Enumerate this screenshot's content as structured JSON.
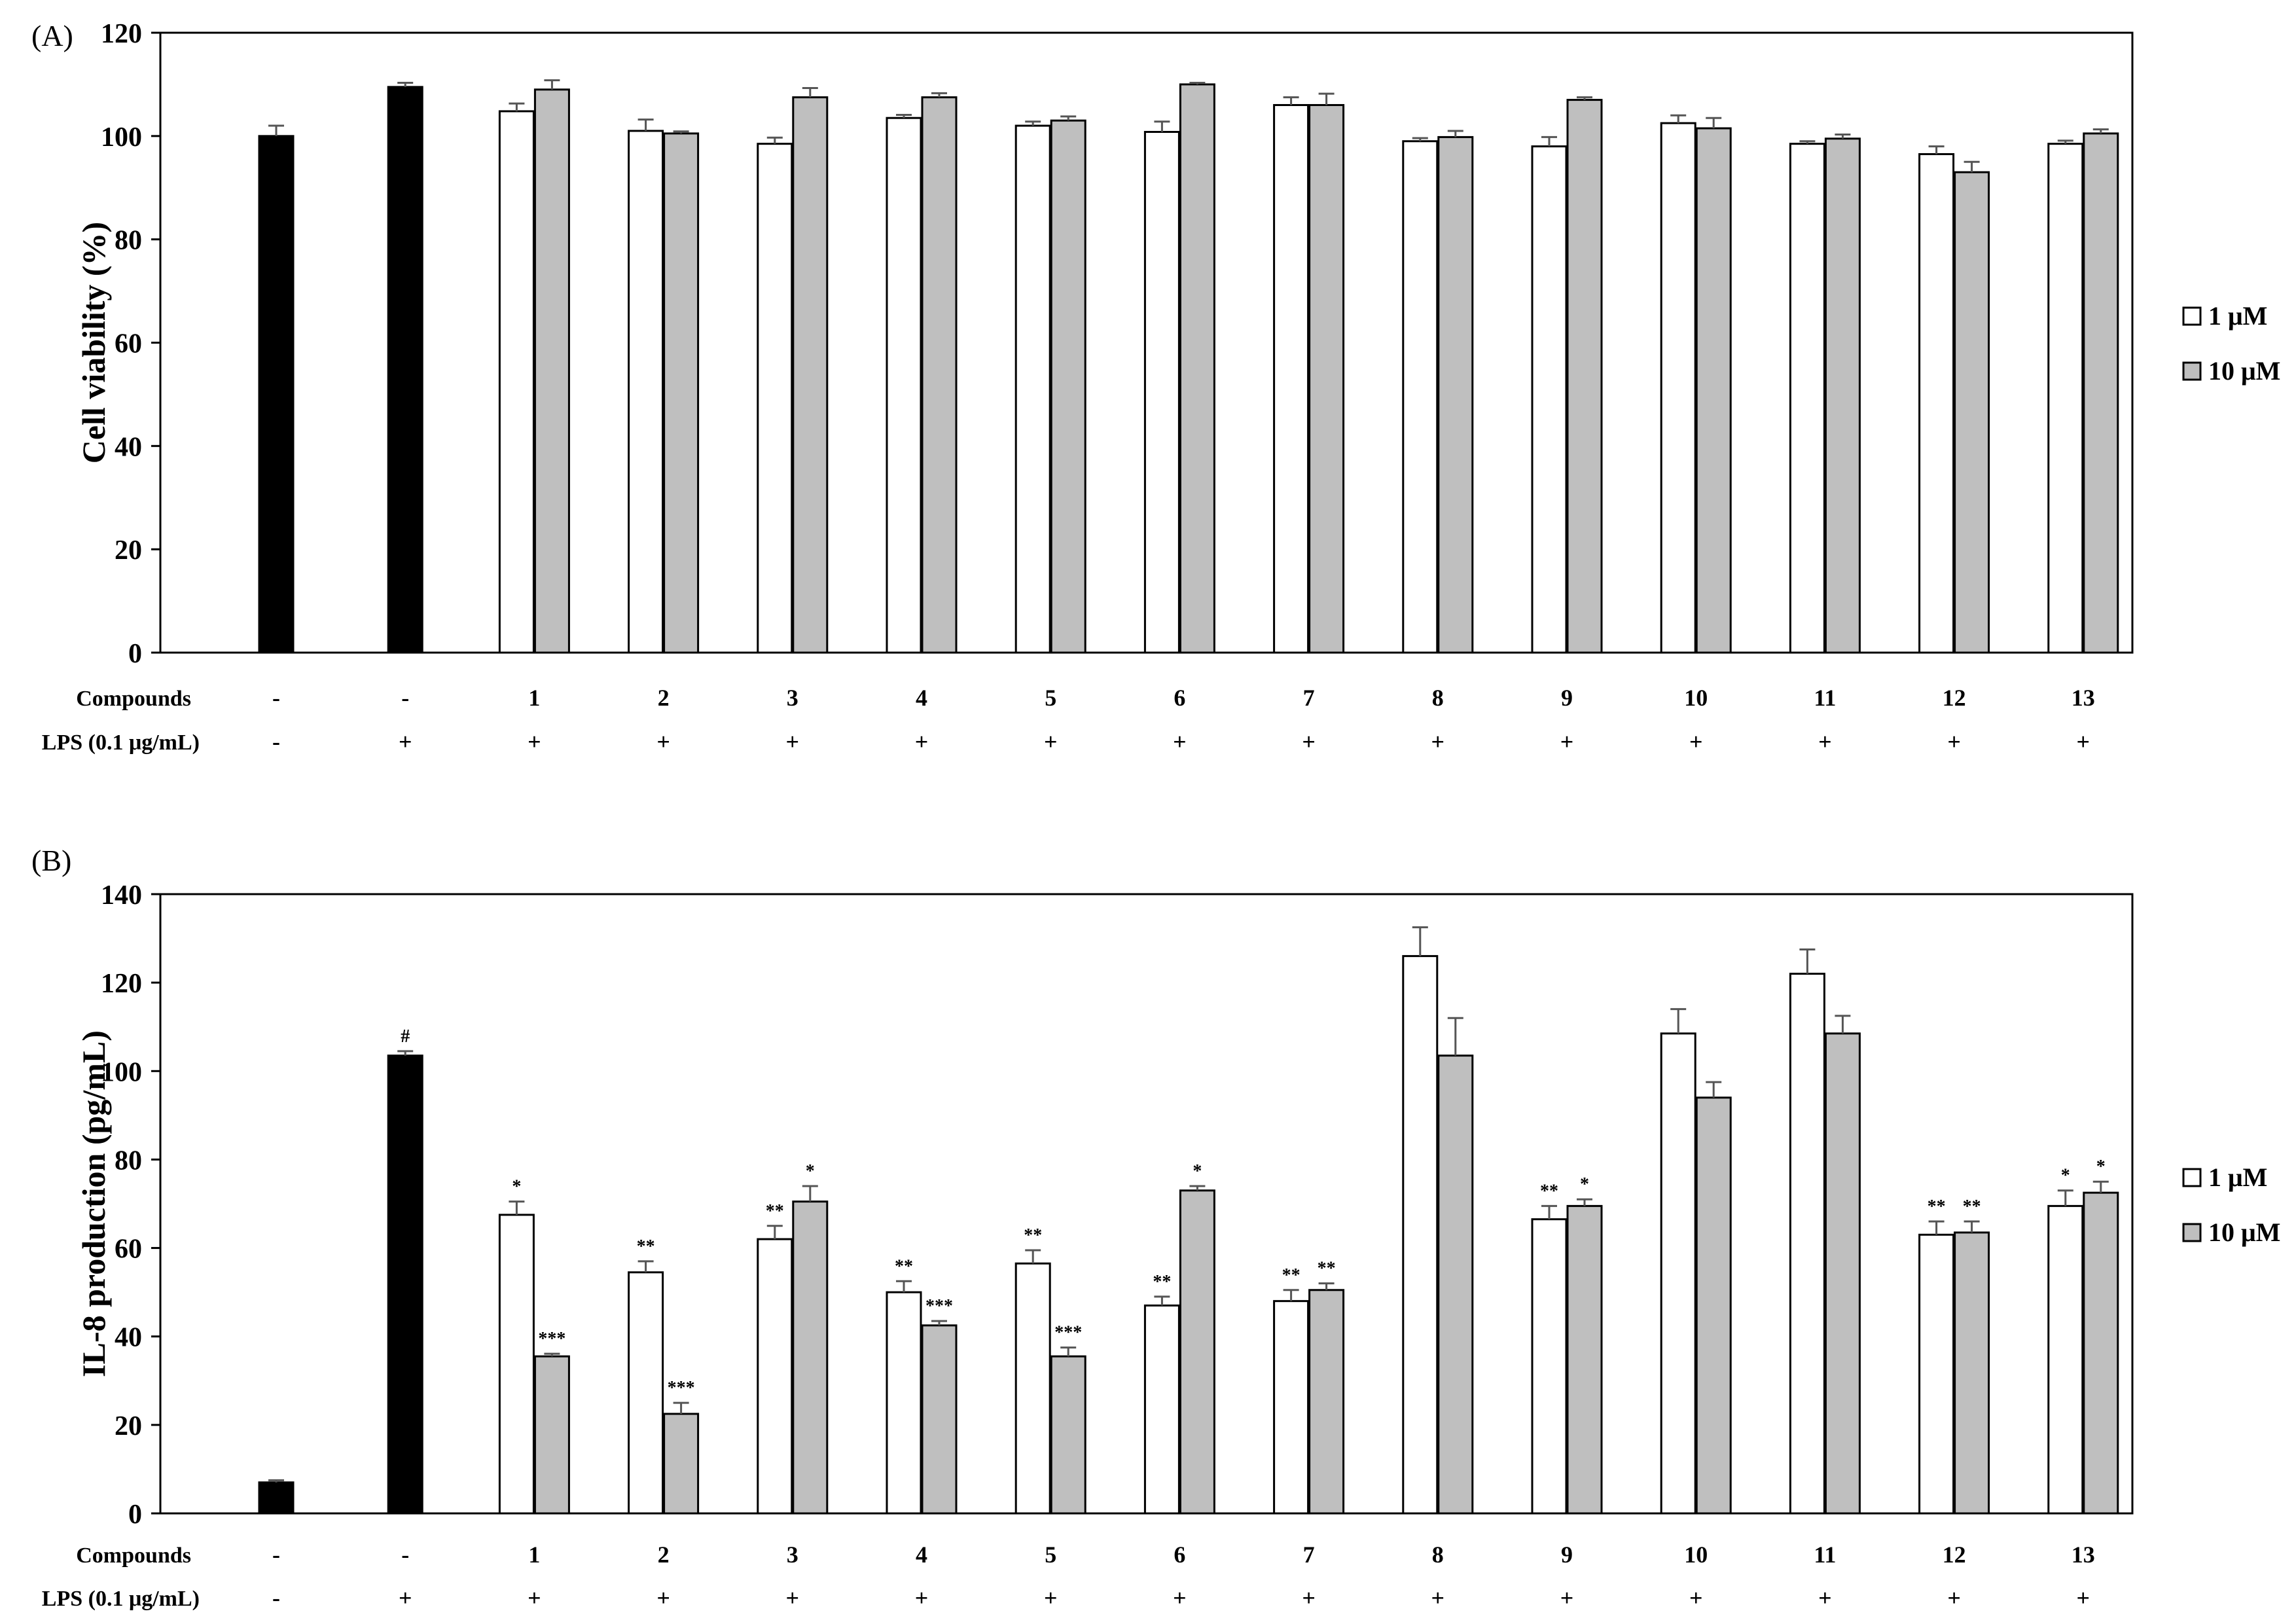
{
  "legend": {
    "label_1uM": "1 μM",
    "label_10uM": "10 μM",
    "placement": "right",
    "colors": {
      "black": "#000000",
      "white": "#ffffff",
      "gray": "#bfbfbf"
    }
  },
  "row_labels": {
    "compounds": "Compounds",
    "lps": "LPS (0.1 μg/mL)"
  },
  "groups": {
    "compounds": [
      "-",
      "-",
      "1",
      "2",
      "3",
      "4",
      "5",
      "6",
      "7",
      "8",
      "9",
      "10",
      "11",
      "12",
      "13"
    ],
    "lps": [
      "-",
      "+",
      "+",
      "+",
      "+",
      "+",
      "+",
      "+",
      "+",
      "+",
      "+",
      "+",
      "+",
      "+",
      "+"
    ]
  },
  "chart_data": [
    {
      "panel_label": "(A)",
      "type": "bar",
      "ylabel": "Cell viability  (%)",
      "ylim": [
        0,
        120
      ],
      "yticks": [
        0,
        20,
        40,
        60,
        80,
        100,
        120
      ],
      "controls": [
        {
          "value": 100,
          "error": 2.0
        },
        {
          "value": 109.5,
          "error": 0.8
        }
      ],
      "series": [
        {
          "name": "1 μM",
          "values": [
            104.8,
            101.0,
            98.5,
            103.5,
            102.0,
            100.8,
            106.0,
            99.0,
            98.0,
            102.5,
            98.5,
            96.5,
            98.5
          ],
          "errors": [
            1.5,
            2.2,
            1.2,
            0.6,
            0.8,
            2.0,
            1.5,
            0.6,
            1.8,
            1.5,
            0.5,
            1.5,
            0.6
          ]
        },
        {
          "name": "10 μM",
          "values": [
            109.0,
            100.5,
            107.5,
            107.5,
            103.0,
            110.0,
            106.0,
            99.8,
            107.0,
            101.5,
            99.5,
            93.0,
            100.5
          ],
          "errors": [
            1.8,
            0.4,
            1.8,
            0.8,
            0.8,
            0.3,
            2.2,
            1.2,
            0.5,
            2.0,
            0.8,
            2.0,
            0.8
          ]
        }
      ],
      "annotations": {
        "controls": [
          "",
          ""
        ],
        "s1": [],
        "s2": []
      }
    },
    {
      "panel_label": "(B)",
      "type": "bar",
      "ylabel": "IL-8 production (pg/mL)",
      "ylim": [
        0,
        140
      ],
      "yticks": [
        0,
        20,
        40,
        60,
        80,
        100,
        120,
        140
      ],
      "controls": [
        {
          "value": 7.0,
          "error": 0.5
        },
        {
          "value": 103.5,
          "error": 1.0
        }
      ],
      "series": [
        {
          "name": "1 μM",
          "values": [
            67.5,
            54.5,
            62.0,
            50.0,
            56.5,
            47.0,
            48.0,
            126.0,
            66.5,
            108.5,
            122.0,
            63.0,
            69.5
          ],
          "errors": [
            3.0,
            2.5,
            3.0,
            2.5,
            3.0,
            2.0,
            2.5,
            6.5,
            3.0,
            5.5,
            5.5,
            3.0,
            3.5
          ]
        },
        {
          "name": "10 μM",
          "values": [
            35.5,
            22.5,
            70.5,
            42.5,
            35.5,
            73.0,
            50.5,
            103.5,
            69.5,
            94.0,
            108.5,
            63.5,
            72.5
          ],
          "errors": [
            0.6,
            2.5,
            3.5,
            1.0,
            2.0,
            1.0,
            1.5,
            8.5,
            1.5,
            3.5,
            4.0,
            2.5,
            2.5
          ]
        }
      ],
      "annotations": {
        "controls": [
          "",
          "#"
        ],
        "s1": [
          "*",
          "**",
          "**",
          "**",
          "**",
          "**",
          "**",
          "",
          "**",
          "",
          "",
          "**",
          "*"
        ],
        "s2": [
          "***",
          "***",
          "*",
          "***",
          "***",
          "*",
          "**",
          "",
          "*",
          "",
          "",
          "**",
          "*"
        ]
      }
    }
  ]
}
